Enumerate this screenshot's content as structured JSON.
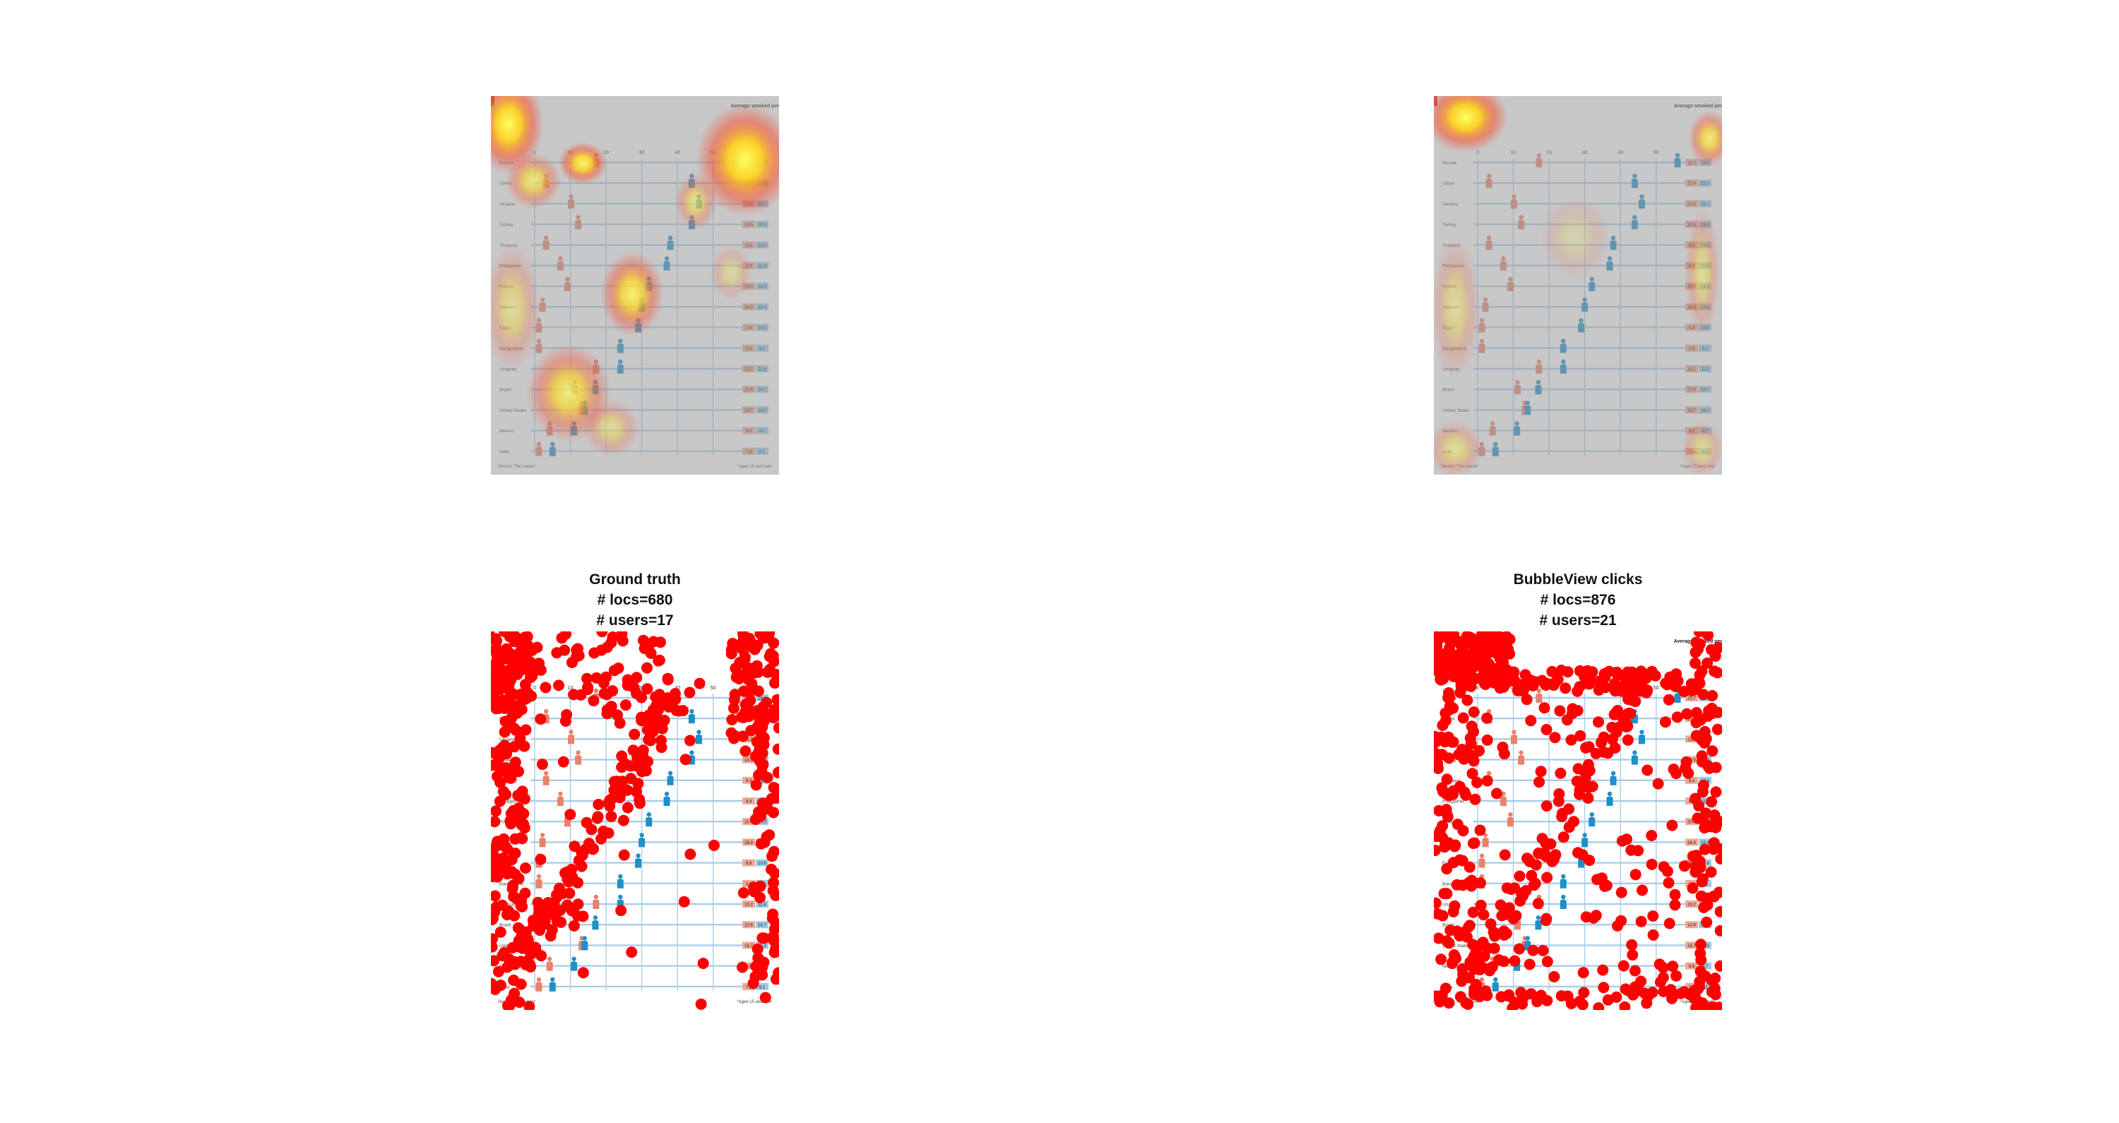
{
  "infographic": {
    "source_note": "Source: The Lancet",
    "footnote": "*Aged 15 and over",
    "legend_heading": "Average smoked per day by:",
    "x_ticks": [
      "0",
      "10",
      "20",
      "30",
      "40",
      "50"
    ],
    "countries": [
      "Russia",
      "China",
      "Ukraine",
      "Turkey",
      "Thailand",
      "Philippines",
      "Poland",
      "Vietnam",
      "Egypt",
      "Bangladesh",
      "Uruguay",
      "Brazil",
      "United States",
      "Mexico",
      "India"
    ],
    "female_values": [
      15.7,
      17.9,
      21.8,
      19.5,
      9.4,
      8.9,
      20.0,
      28.9,
      9.8,
      3.6,
      10.2,
      10.6,
      18.7,
      8.6,
      7.8
    ],
    "male_values": [
      16.5,
      22.3,
      18.1,
      15.3,
      13.4,
      11.4,
      18.3,
      15.4,
      10.6,
      8.1,
      11.8,
      16.7,
      16.2,
      8.7,
      6.1
    ],
    "female_icon_x": [
      16,
      2,
      9,
      11,
      2,
      6,
      8,
      1,
      0,
      0,
      16,
      10,
      12,
      3,
      0
    ],
    "male_icon_x": [
      56,
      44,
      46,
      44,
      38,
      37,
      32,
      30,
      29,
      24,
      24,
      17,
      14,
      11,
      5
    ]
  },
  "panels": {
    "ground_truth": {
      "title": "Ground truth",
      "locs_label": "# locs=680",
      "users_label": "# users=17"
    },
    "bubbleview": {
      "title": "BubbleView clicks",
      "locs_label": "# locs=876",
      "users_label": "# users=21"
    }
  },
  "colors": {
    "dot": "#ff0000",
    "female": "#e8826b",
    "male": "#1f8fc8",
    "grid": "#a9cde8",
    "heat_hot": "#ffff66",
    "heat_mid": "#ff3b1a",
    "heat_bg": "#b4b4b4"
  }
}
